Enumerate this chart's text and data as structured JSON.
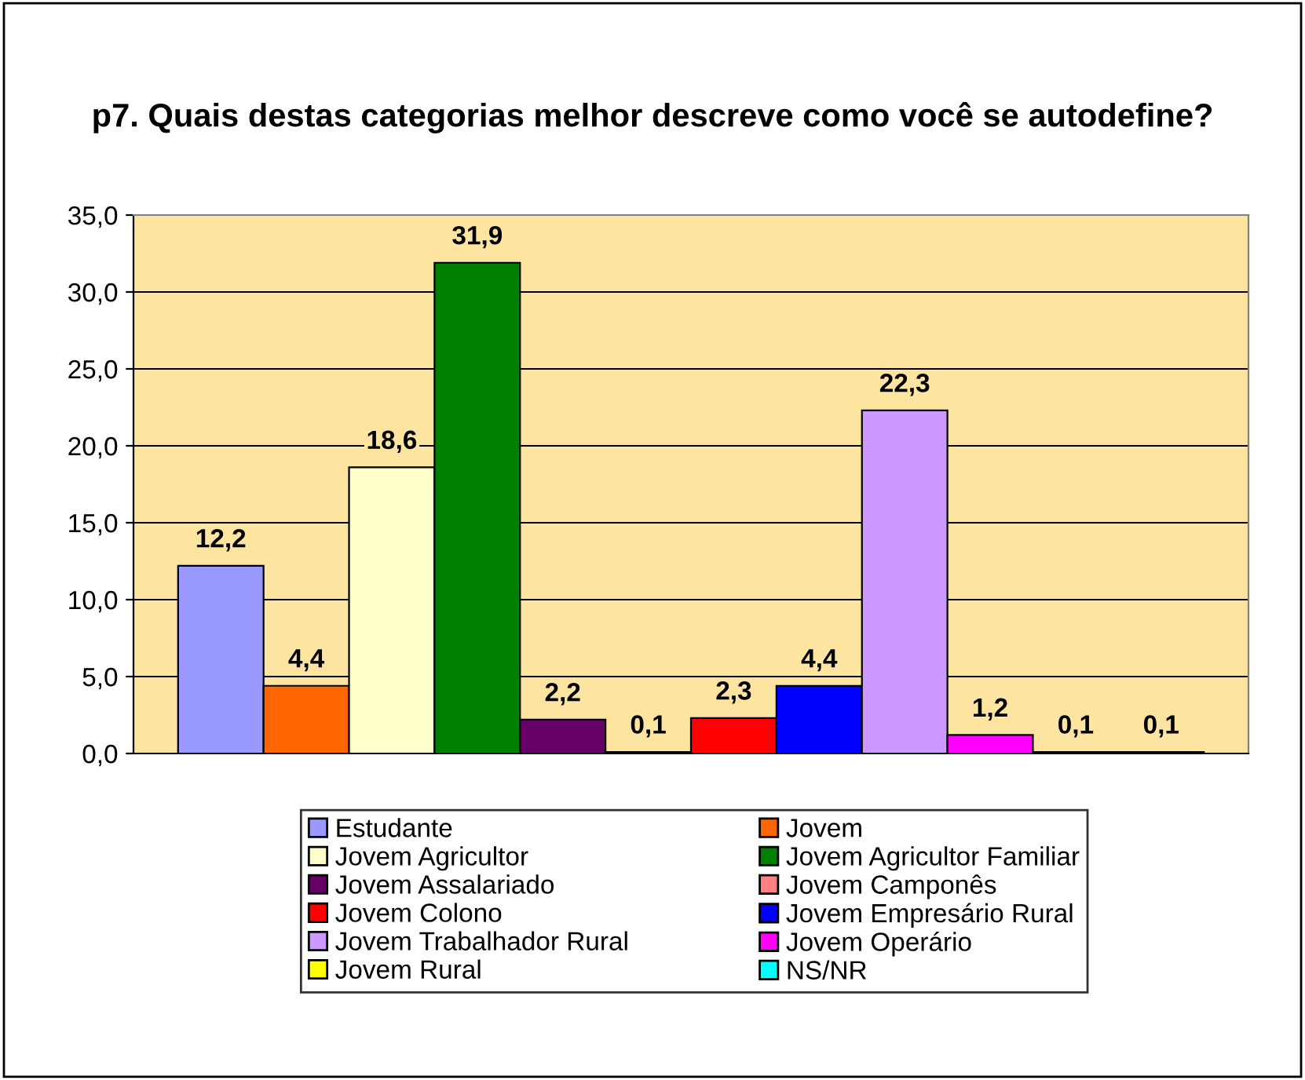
{
  "chart_data": {
    "type": "bar",
    "title": "p7. Quais destas categorias melhor descreve como você se autodefine?",
    "categories": [
      null
    ],
    "ylim": [
      0,
      35
    ],
    "yticks": [
      {
        "value": 0,
        "label": "0,0"
      },
      {
        "value": 5,
        "label": "5,0"
      },
      {
        "value": 10,
        "label": "10,0"
      },
      {
        "value": 15,
        "label": "15,0"
      },
      {
        "value": 20,
        "label": "20,0"
      },
      {
        "value": 25,
        "label": "25,0"
      },
      {
        "value": 30,
        "label": "30,0"
      },
      {
        "value": 35,
        "label": "35,0"
      }
    ],
    "grid": "y",
    "legend": "bottom",
    "tick_labels": "y",
    "series": [
      {
        "name": "Estudante",
        "color": "#9999ff",
        "values": [
          12.2
        ],
        "value_labels": [
          "12,2"
        ]
      },
      {
        "name": "Jovem",
        "color": "#ff6600",
        "values": [
          4.4
        ],
        "value_labels": [
          "4,4"
        ]
      },
      {
        "name": "Jovem Agricultor",
        "color": "#ffffcc",
        "values": [
          18.6
        ],
        "value_labels": [
          "18,6"
        ]
      },
      {
        "name": "Jovem Agricultor Familiar",
        "color": "#008000",
        "values": [
          31.9
        ],
        "value_labels": [
          "31,9"
        ]
      },
      {
        "name": "Jovem Assalariado",
        "color": "#660066",
        "values": [
          2.2
        ],
        "value_labels": [
          "2,2"
        ]
      },
      {
        "name": "Jovem Camponês",
        "color": "#ff8080",
        "values": [
          0.1
        ],
        "value_labels": [
          "0,1"
        ]
      },
      {
        "name": "Jovem Colono",
        "color": "#ff0000",
        "values": [
          2.3
        ],
        "value_labels": [
          "2,3"
        ]
      },
      {
        "name": "Jovem Empresário Rural",
        "color": "#0000ff",
        "values": [
          4.4
        ],
        "value_labels": [
          "4,4"
        ]
      },
      {
        "name": "Jovem Trabalhador Rural",
        "color": "#cc99ff",
        "values": [
          22.3
        ],
        "value_labels": [
          "22,3"
        ]
      },
      {
        "name": "Jovem Operário",
        "color": "#ff00ff",
        "values": [
          1.2
        ],
        "value_labels": [
          "1,2"
        ]
      },
      {
        "name": "Jovem Rural",
        "color": "#ffff00",
        "values": [
          0.1
        ],
        "value_labels": [
          "0,1"
        ]
      },
      {
        "name": "NS/NR",
        "color": "#00ffff",
        "values": [
          0.1
        ],
        "value_labels": [
          "0,1"
        ]
      }
    ]
  }
}
